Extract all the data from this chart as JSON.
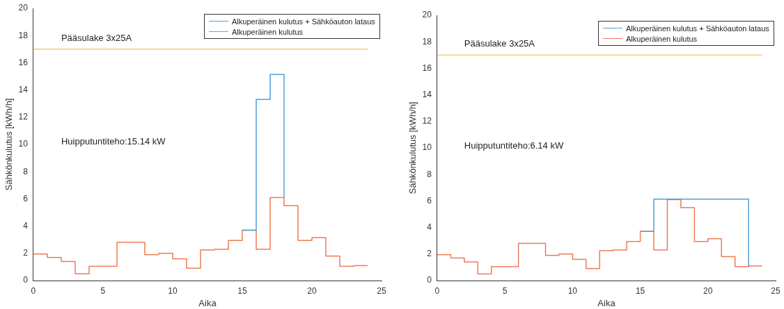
{
  "chart_data": [
    {
      "type": "step",
      "xlabel": "Aika",
      "ylabel": "Sähkönkulutus [kWh/h]",
      "xlim": [
        0,
        25
      ],
      "xticks": [
        0,
        5,
        10,
        15,
        20,
        25
      ],
      "ylim": [
        0,
        20
      ],
      "yticks": [
        0,
        2,
        4,
        6,
        8,
        10,
        12,
        14,
        16,
        18,
        20
      ],
      "grid": false,
      "legend": "top right",
      "series": [
        {
          "name": "Alkuperäinen kulutus + Sähköauton lataus",
          "color": "#4f9fdc",
          "x": [
            15,
            16,
            17,
            18
          ],
          "values": [
            3.7,
            13.3,
            15.14,
            6.1
          ]
        },
        {
          "name": "Alkuperäinen kulutus",
          "color": "#ee7b55",
          "x": [
            0,
            1,
            2,
            3,
            4,
            5,
            6,
            7,
            8,
            9,
            10,
            11,
            12,
            13,
            14,
            15,
            16,
            17,
            18,
            19,
            20,
            21,
            22,
            23,
            24
          ],
          "values": [
            1.95,
            1.7,
            1.4,
            0.5,
            1.05,
            1.05,
            2.8,
            2.8,
            1.9,
            2.0,
            1.6,
            0.9,
            2.25,
            2.3,
            2.95,
            3.7,
            2.3,
            6.1,
            5.5,
            2.95,
            3.15,
            1.8,
            1.05,
            1.1,
            1.1
          ]
        }
      ],
      "ref_lines": [
        {
          "axis": "y",
          "value": 17,
          "label": "Pääsulake 3x25A",
          "color": "#f0d898"
        }
      ],
      "annotations": [
        "Huipputuntiteho:15.14 kW"
      ]
    },
    {
      "type": "step",
      "xlabel": "Aika",
      "ylabel": "Sähkönkulutus [kWh/h]",
      "xlim": [
        0,
        25
      ],
      "xticks": [
        0,
        5,
        10,
        15,
        20,
        25
      ],
      "ylim": [
        0,
        20
      ],
      "yticks": [
        0,
        2,
        4,
        6,
        8,
        10,
        12,
        14,
        16,
        18,
        20
      ],
      "grid": false,
      "legend": "top right",
      "series": [
        {
          "name": "Alkuperäinen kulutus + Sähköauton lataus",
          "color": "#4f9fdc",
          "x": [
            15,
            16,
            23
          ],
          "values": [
            3.7,
            6.14,
            1.1
          ]
        },
        {
          "name": "Alkuperäinen kulutus",
          "color": "#ee7b55",
          "x": [
            0,
            1,
            2,
            3,
            4,
            5,
            6,
            7,
            8,
            9,
            10,
            11,
            12,
            13,
            14,
            15,
            16,
            17,
            18,
            19,
            20,
            21,
            22,
            23,
            24
          ],
          "values": [
            1.95,
            1.7,
            1.4,
            0.5,
            1.05,
            1.05,
            2.8,
            2.8,
            1.9,
            2.0,
            1.6,
            0.9,
            2.25,
            2.3,
            2.95,
            3.7,
            2.3,
            6.1,
            5.5,
            2.95,
            3.15,
            1.8,
            1.05,
            1.1,
            1.1
          ]
        }
      ],
      "ref_lines": [
        {
          "axis": "y",
          "value": 17,
          "label": "Pääsulake 3x25A",
          "color": "#f0d898"
        }
      ],
      "annotations": [
        "Huipputuntiteho:6.14 kW"
      ]
    }
  ]
}
